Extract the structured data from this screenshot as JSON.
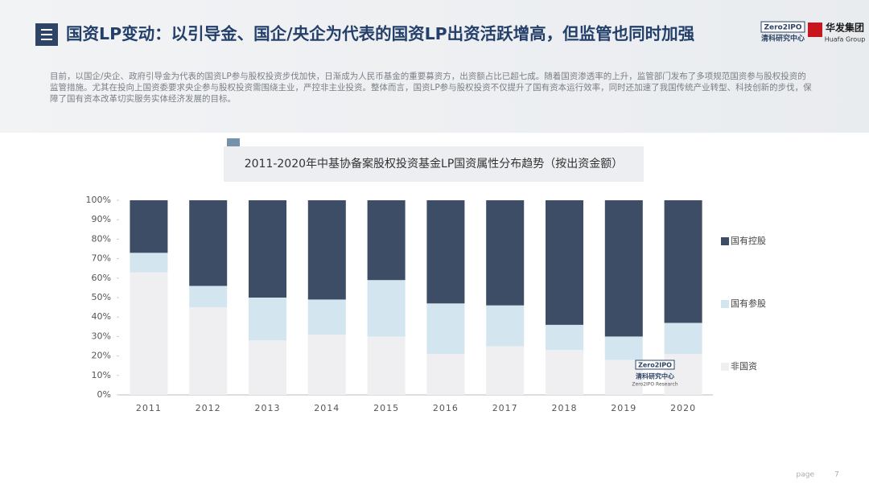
{
  "header": {
    "title": "国资LP变动：以引导金、国企/央企为代表的国资LP出资活跃增高，但监管也同时加强"
  },
  "logos": [
    "Zero2IPO",
    "清科研究中心",
    "华发集团",
    "Huafa Group"
  ],
  "intro": "目前，以国企/央企、政府引导金为代表的国资LP参与股权投资步伐加快，日渐成为人民币基金的重要募资方，出资额占比已超七成。随着国资渗透率的上升，监管部门发布了多项规范国资参与股权投资的监管措施。尤其在投向上国资委要求央企参与股权投资需围绕主业，严控非主业投资。整体而言，国资LP参与股权投资不仅提升了国有资本运行效率，同时还加速了我国传统产业转型、科技创新的步伐，保障了国有资本改革切实服务实体经济发展的目标。",
  "chart_data": {
    "type": "bar",
    "stacked": true,
    "title": "2011-2020年中基协备案股权投资基金LP国资属性分布趋势（按出资金额）",
    "categories": [
      "2011",
      "2012",
      "2013",
      "2014",
      "2015",
      "2016",
      "2017",
      "2018",
      "2019",
      "2020"
    ],
    "series": [
      {
        "name": "非国资",
        "color": "#efeff1",
        "values": [
          63,
          45,
          28,
          31,
          30,
          21,
          25,
          23,
          18,
          21
        ]
      },
      {
        "name": "国有参股",
        "color": "#d3e5ee",
        "values": [
          10,
          11,
          22,
          18,
          29,
          26,
          21,
          13,
          12,
          16
        ]
      },
      {
        "name": "国有控股",
        "color": "#3c4d65",
        "values": [
          27,
          44,
          50,
          51,
          41,
          53,
          54,
          64,
          70,
          63
        ]
      }
    ],
    "ylim": [
      0,
      100
    ],
    "yticks": [
      {
        "value": 0,
        "label": "0%"
      },
      {
        "value": 10,
        "label": "10%"
      },
      {
        "value": 20,
        "label": "20%"
      },
      {
        "value": 30,
        "label": "30%"
      },
      {
        "value": 40,
        "label": "40%"
      },
      {
        "value": 50,
        "label": "50%"
      },
      {
        "value": 60,
        "label": "60%"
      },
      {
        "value": 70,
        "label": "70%"
      },
      {
        "value": 80,
        "label": "80%"
      },
      {
        "value": 90,
        "label": "90%"
      },
      {
        "value": 100,
        "label": "100%"
      }
    ],
    "legend": "right",
    "watermark": [
      "Zero2IPO",
      "清科研究中心",
      "Zero2IPO Research"
    ]
  },
  "footer": {
    "page_label": "page",
    "page_number": 7
  }
}
